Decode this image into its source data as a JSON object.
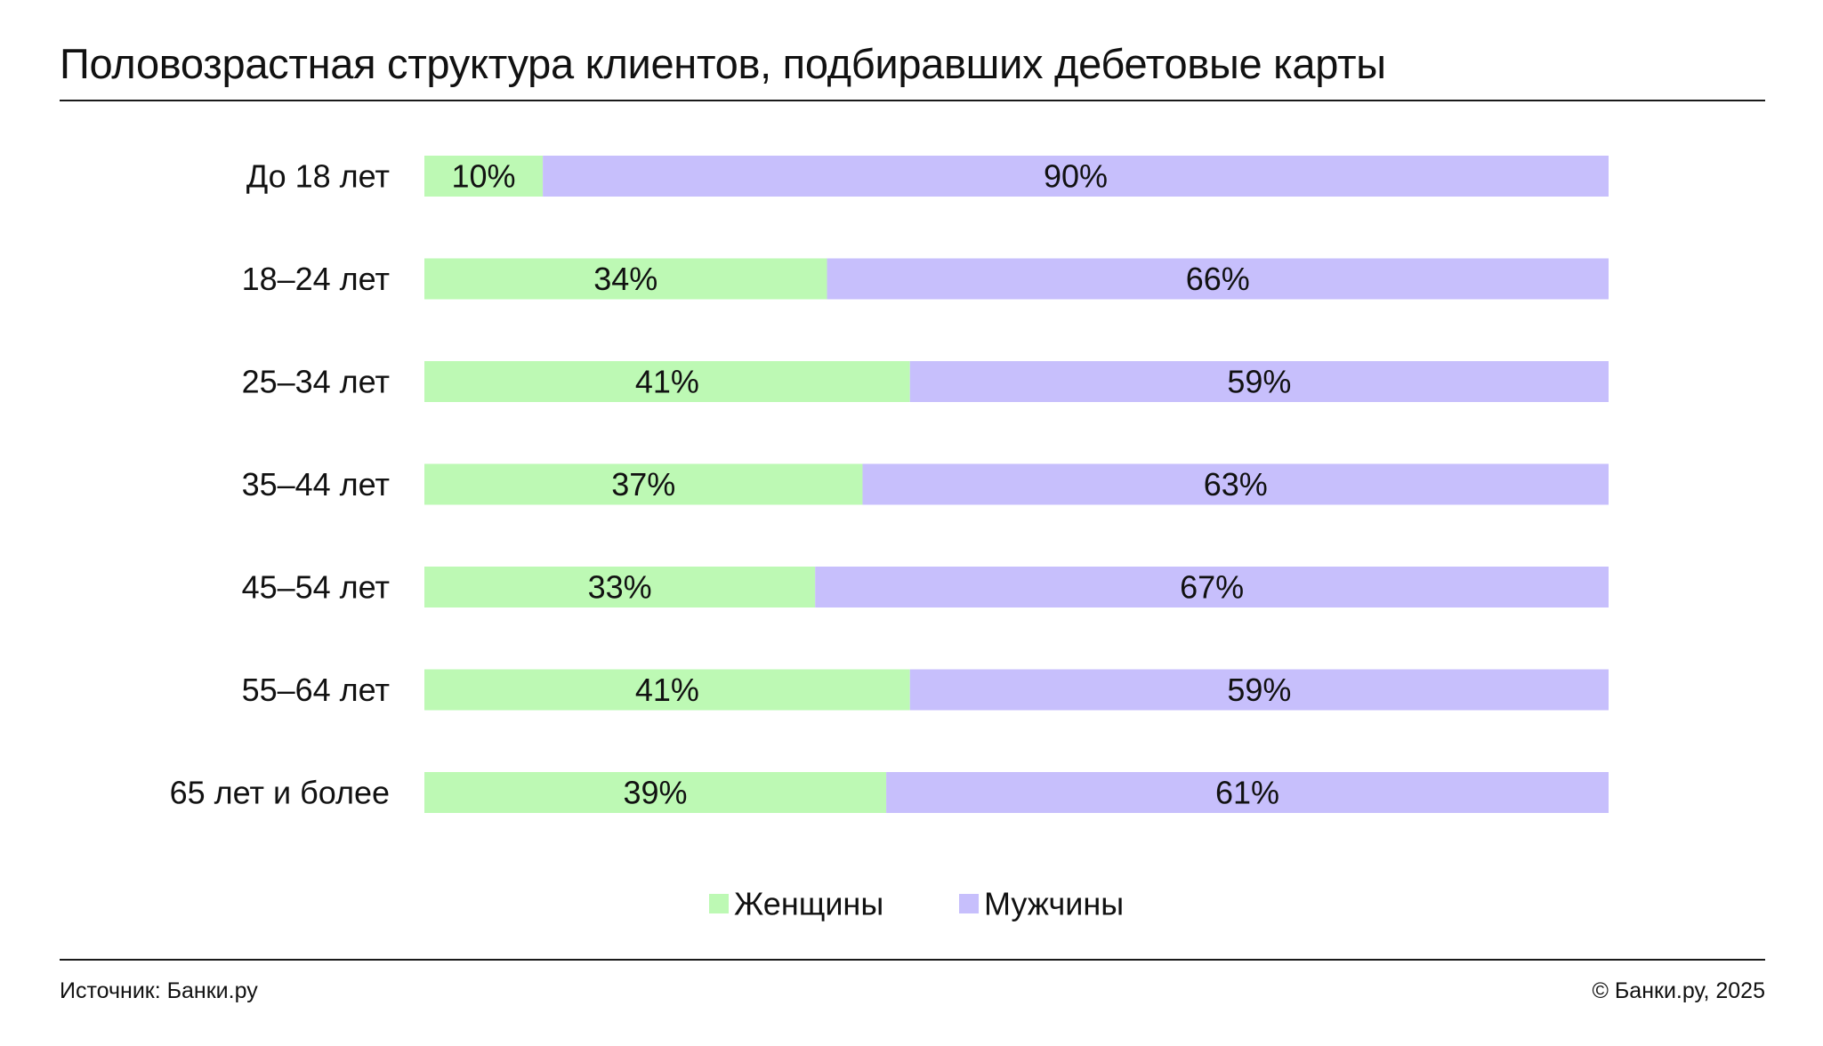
{
  "title": "Половозрастная структура клиентов, подбиравших дебетовые карты",
  "footer": {
    "source": "Источник: Банки.ру",
    "copyright": "© Банки.ру, 2025"
  },
  "colors": {
    "women": "#bdf9b4",
    "men": "#c7bffc",
    "text": "#111111"
  },
  "chart_data": {
    "type": "bar",
    "orientation": "horizontal",
    "stacked": true,
    "normalized": true,
    "categories": [
      "До 18 лет",
      "18–24 лет",
      "25–34 лет",
      "35–44 лет",
      "45–54 лет",
      "55–64 лет",
      "65 лет и более"
    ],
    "series": [
      {
        "name": "Женщины",
        "values": [
          10,
          34,
          41,
          37,
          33,
          41,
          39
        ],
        "labels": [
          "10%",
          "34%",
          "41%",
          "37%",
          "33%",
          "41%",
          "39%"
        ],
        "color": "#bdf9b4"
      },
      {
        "name": "Мужчины",
        "values": [
          90,
          66,
          59,
          63,
          67,
          59,
          61
        ],
        "labels": [
          "90%",
          "66%",
          "59%",
          "63%",
          "67%",
          "59%",
          "61%"
        ],
        "color": "#c7bffc"
      }
    ],
    "xlim": [
      0,
      100
    ],
    "grid": false,
    "legend": "bottom-center"
  }
}
